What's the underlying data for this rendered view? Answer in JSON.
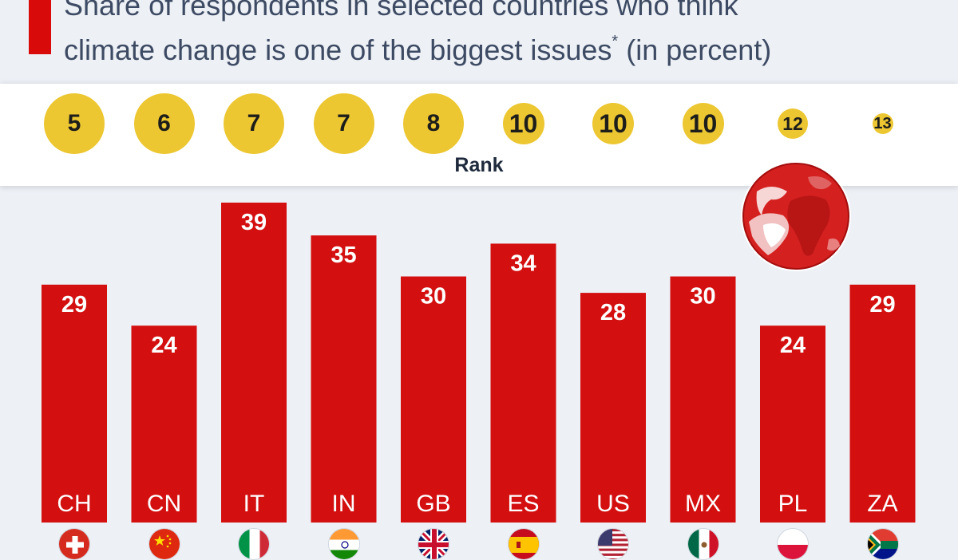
{
  "title": {
    "line1": "Share of respondents in selected countries who think",
    "line2": "climate change is one of the biggest issues",
    "asterisk": "*",
    "suffix": " (in percent)"
  },
  "rank_label": "Rank",
  "colors": {
    "bar": "#d30f10",
    "accent": "#d90a0a",
    "rank_circle": "#ecc731",
    "background": "#edf1f6"
  },
  "chart_data": {
    "type": "bar",
    "categories": [
      "CH",
      "CN",
      "IT",
      "IN",
      "GB",
      "ES",
      "US",
      "MX",
      "PL",
      "ZA"
    ],
    "values": [
      29,
      24,
      39,
      35,
      30,
      34,
      28,
      30,
      24,
      29
    ],
    "ranks": [
      5,
      6,
      7,
      7,
      8,
      10,
      10,
      10,
      12,
      13
    ],
    "ylim": [
      0,
      40
    ],
    "xlabel": "",
    "ylabel": "",
    "grid": false,
    "data_labels": true,
    "flags": [
      "switzerland-flag-icon",
      "china-flag-icon",
      "italy-flag-icon",
      "india-flag-icon",
      "uk-flag-icon",
      "spain-flag-icon",
      "usa-flag-icon",
      "mexico-flag-icon",
      "poland-flag-icon",
      "south-africa-flag-icon"
    ]
  }
}
